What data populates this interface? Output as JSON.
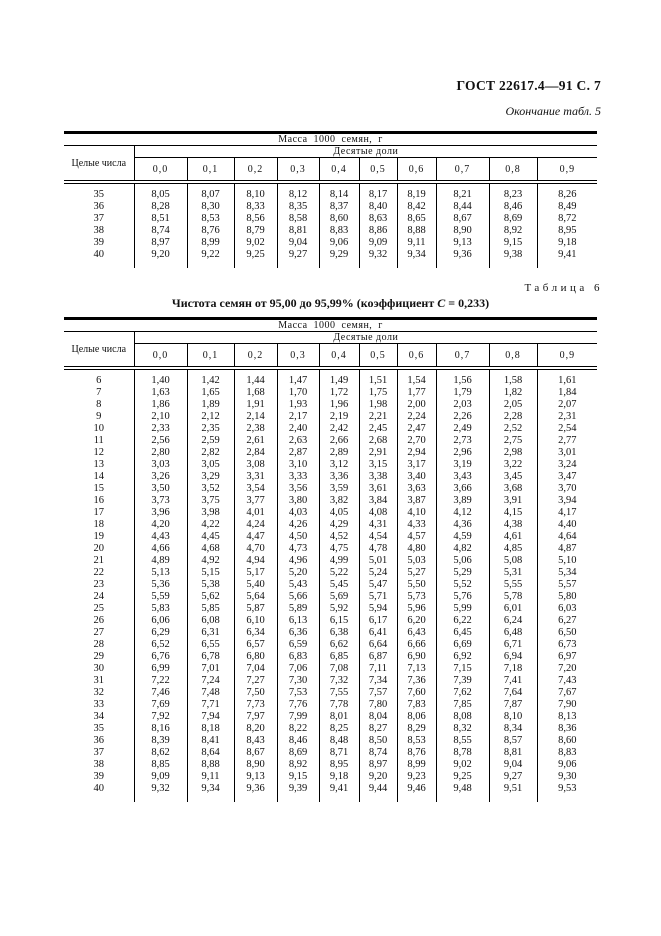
{
  "page": {
    "header_right": "ГОСТ 22617.4—91 С. 7",
    "continuation_note": "Окончание табл. 5"
  },
  "table6_label": "Таблица 6",
  "table6_title": {
    "prefix": "Чистота семян от 95,00 до 95,99%  (коэффициент ",
    "c": "С",
    "suffix": " = 0,233)"
  },
  "table5": {
    "top_header": "Масса 1000 семян, г",
    "col_integer": "Целые числа",
    "col_tenths": "Десятые доли",
    "tenths": [
      "0,0",
      "0,1",
      "0,2",
      "0,3",
      "0,4",
      "0,5",
      "0,6",
      "0,7",
      "0,8",
      "0,9"
    ],
    "rows": [
      {
        "n": "35",
        "v": [
          "8,05",
          "8,07",
          "8,10",
          "8,12",
          "8,14",
          "8,17",
          "8,19",
          "8,21",
          "8,23",
          "8,26"
        ]
      },
      {
        "n": "36",
        "v": [
          "8,28",
          "8,30",
          "8,33",
          "8,35",
          "8,37",
          "8,40",
          "8,42",
          "8,44",
          "8,46",
          "8,49"
        ]
      },
      {
        "n": "37",
        "v": [
          "8,51",
          "8,53",
          "8,56",
          "8,58",
          "8,60",
          "8,63",
          "8,65",
          "8,67",
          "8,69",
          "8,72"
        ]
      },
      {
        "n": "38",
        "v": [
          "8,74",
          "8,76",
          "8,79",
          "8,81",
          "8,83",
          "8,86",
          "8,88",
          "8,90",
          "8,92",
          "8,95"
        ]
      },
      {
        "n": "39",
        "v": [
          "8,97",
          "8,99",
          "9,02",
          "9,04",
          "9,06",
          "9,09",
          "9,11",
          "9,13",
          "9,15",
          "9,18"
        ]
      },
      {
        "n": "40",
        "v": [
          "9,20",
          "9,22",
          "9,25",
          "9,27",
          "9,29",
          "9,32",
          "9,34",
          "9,36",
          "9,38",
          "9,41"
        ]
      }
    ]
  },
  "table6": {
    "top_header": "Масса 1000 семян, г",
    "col_integer": "Целые числа",
    "col_tenths": "Десятые доли",
    "tenths": [
      "0,0",
      "0,1",
      "0,2",
      "0,3",
      "0,4",
      "0,5",
      "0,6",
      "0,7",
      "0,8",
      "0,9"
    ],
    "rows": [
      {
        "n": "6",
        "v": [
          "1,40",
          "1,42",
          "1,44",
          "1,47",
          "1,49",
          "1,51",
          "1,54",
          "1,56",
          "1,58",
          "1,61"
        ]
      },
      {
        "n": "7",
        "v": [
          "1,63",
          "1,65",
          "1,68",
          "1,70",
          "1,72",
          "1,75",
          "1,77",
          "1,79",
          "1,82",
          "1,84"
        ]
      },
      {
        "n": "8",
        "v": [
          "1,86",
          "1,89",
          "1,91",
          "1,93",
          "1,96",
          "1,98",
          "2,00",
          "2,03",
          "2,05",
          "2,07"
        ]
      },
      {
        "n": "9",
        "v": [
          "2,10",
          "2,12",
          "2,14",
          "2,17",
          "2,19",
          "2,21",
          "2,24",
          "2,26",
          "2,28",
          "2,31"
        ]
      },
      {
        "n": "10",
        "v": [
          "2,33",
          "2,35",
          "2,38",
          "2,40",
          "2,42",
          "2,45",
          "2,47",
          "2,49",
          "2,52",
          "2,54"
        ]
      },
      {
        "n": "11",
        "v": [
          "2,56",
          "2,59",
          "2,61",
          "2,63",
          "2,66",
          "2,68",
          "2,70",
          "2,73",
          "2,75",
          "2,77"
        ]
      },
      {
        "n": "12",
        "v": [
          "2,80",
          "2,82",
          "2,84",
          "2,87",
          "2,89",
          "2,91",
          "2,94",
          "2,96",
          "2,98",
          "3,01"
        ]
      },
      {
        "n": "13",
        "v": [
          "3,03",
          "3,05",
          "3,08",
          "3,10",
          "3,12",
          "3,15",
          "3,17",
          "3,19",
          "3,22",
          "3,24"
        ]
      },
      {
        "n": "14",
        "v": [
          "3,26",
          "3,29",
          "3,31",
          "3,33",
          "3,36",
          "3,38",
          "3,40",
          "3,43",
          "3,45",
          "3,47"
        ]
      },
      {
        "n": "15",
        "v": [
          "3,50",
          "3,52",
          "3,54",
          "3,56",
          "3,59",
          "3,61",
          "3,63",
          "3,66",
          "3,68",
          "3,70"
        ]
      },
      {
        "n": "16",
        "v": [
          "3,73",
          "3,75",
          "3,77",
          "3,80",
          "3,82",
          "3,84",
          "3,87",
          "3,89",
          "3,91",
          "3,94"
        ]
      },
      {
        "n": "17",
        "v": [
          "3,96",
          "3,98",
          "4,01",
          "4,03",
          "4,05",
          "4,08",
          "4,10",
          "4,12",
          "4,15",
          "4,17"
        ]
      },
      {
        "n": "18",
        "v": [
          "4,20",
          "4,22",
          "4,24",
          "4,26",
          "4,29",
          "4,31",
          "4,33",
          "4,36",
          "4,38",
          "4,40"
        ]
      },
      {
        "n": "19",
        "v": [
          "4,43",
          "4,45",
          "4,47",
          "4,50",
          "4,52",
          "4,54",
          "4,57",
          "4,59",
          "4,61",
          "4,64"
        ]
      },
      {
        "n": "20",
        "v": [
          "4,66",
          "4,68",
          "4,70",
          "4,73",
          "4,75",
          "4,78",
          "4,80",
          "4,82",
          "4,85",
          "4,87"
        ]
      },
      {
        "n": "21",
        "v": [
          "4,89",
          "4,92",
          "4,94",
          "4,96",
          "4,99",
          "5,01",
          "5,03",
          "5,06",
          "5,08",
          "5,10"
        ]
      },
      {
        "n": "22",
        "v": [
          "5,13",
          "5,15",
          "5,17",
          "5,20",
          "5,22",
          "5,24",
          "5,27",
          "5,29",
          "5,31",
          "5,34"
        ]
      },
      {
        "n": "23",
        "v": [
          "5,36",
          "5,38",
          "5,40",
          "5,43",
          "5,45",
          "5,47",
          "5,50",
          "5,52",
          "5,55",
          "5,57"
        ]
      },
      {
        "n": "24",
        "v": [
          "5,59",
          "5,62",
          "5,64",
          "5,66",
          "5,69",
          "5,71",
          "5,73",
          "5,76",
          "5,78",
          "5,80"
        ]
      },
      {
        "n": "25",
        "v": [
          "5,83",
          "5,85",
          "5,87",
          "5,89",
          "5,92",
          "5,94",
          "5,96",
          "5,99",
          "6,01",
          "6,03"
        ]
      },
      {
        "n": "26",
        "v": [
          "6,06",
          "6,08",
          "6,10",
          "6,13",
          "6,15",
          "6,17",
          "6,20",
          "6,22",
          "6,24",
          "6,27"
        ]
      },
      {
        "n": "27",
        "v": [
          "6,29",
          "6,31",
          "6,34",
          "6,36",
          "6,38",
          "6,41",
          "6,43",
          "6,45",
          "6,48",
          "6,50"
        ]
      },
      {
        "n": "28",
        "v": [
          "6,52",
          "6,55",
          "6,57",
          "6,59",
          "6,62",
          "6,64",
          "6,66",
          "6,69",
          "6,71",
          "6,73"
        ]
      },
      {
        "n": "29",
        "v": [
          "6,76",
          "6,78",
          "6,80",
          "6,83",
          "6,85",
          "6,87",
          "6,90",
          "6,92",
          "6,94",
          "6,97"
        ]
      },
      {
        "n": "30",
        "v": [
          "6,99",
          "7,01",
          "7,04",
          "7,06",
          "7,08",
          "7,11",
          "7,13",
          "7,15",
          "7,18",
          "7,20"
        ]
      },
      {
        "n": "31",
        "v": [
          "7,22",
          "7,24",
          "7,27",
          "7,30",
          "7,32",
          "7,34",
          "7,36",
          "7,39",
          "7,41",
          "7,43"
        ]
      },
      {
        "n": "32",
        "v": [
          "7,46",
          "7,48",
          "7,50",
          "7,53",
          "7,55",
          "7,57",
          "7,60",
          "7,62",
          "7,64",
          "7,67"
        ]
      },
      {
        "n": "33",
        "v": [
          "7,69",
          "7,71",
          "7,73",
          "7,76",
          "7,78",
          "7,80",
          "7,83",
          "7,85",
          "7,87",
          "7,90"
        ]
      },
      {
        "n": "34",
        "v": [
          "7,92",
          "7,94",
          "7,97",
          "7,99",
          "8,01",
          "8,04",
          "8,06",
          "8,08",
          "8,10",
          "8,13"
        ]
      },
      {
        "n": "35",
        "v": [
          "8,16",
          "8,18",
          "8,20",
          "8,22",
          "8,25",
          "8,27",
          "8,29",
          "8,32",
          "8,34",
          "8,36"
        ]
      },
      {
        "n": "36",
        "v": [
          "8,39",
          "8,41",
          "8,43",
          "8,46",
          "8,48",
          "8,50",
          "8,53",
          "8,55",
          "8,57",
          "8,60"
        ]
      },
      {
        "n": "37",
        "v": [
          "8,62",
          "8,64",
          "8,67",
          "8,69",
          "8,71",
          "8,74",
          "8,76",
          "8,78",
          "8,81",
          "8,83"
        ]
      },
      {
        "n": "38",
        "v": [
          "8,85",
          "8,88",
          "8,90",
          "8,92",
          "8,95",
          "8,97",
          "8,99",
          "9,02",
          "9,04",
          "9,06"
        ]
      },
      {
        "n": "39",
        "v": [
          "9,09",
          "9,11",
          "9,13",
          "9,15",
          "9,18",
          "9,20",
          "9,23",
          "9,25",
          "9,27",
          "9,30"
        ]
      },
      {
        "n": "40",
        "v": [
          "9,32",
          "9,34",
          "9,36",
          "9,39",
          "9,41",
          "9,44",
          "9,46",
          "9,48",
          "9,51",
          "9,53"
        ]
      }
    ]
  }
}
